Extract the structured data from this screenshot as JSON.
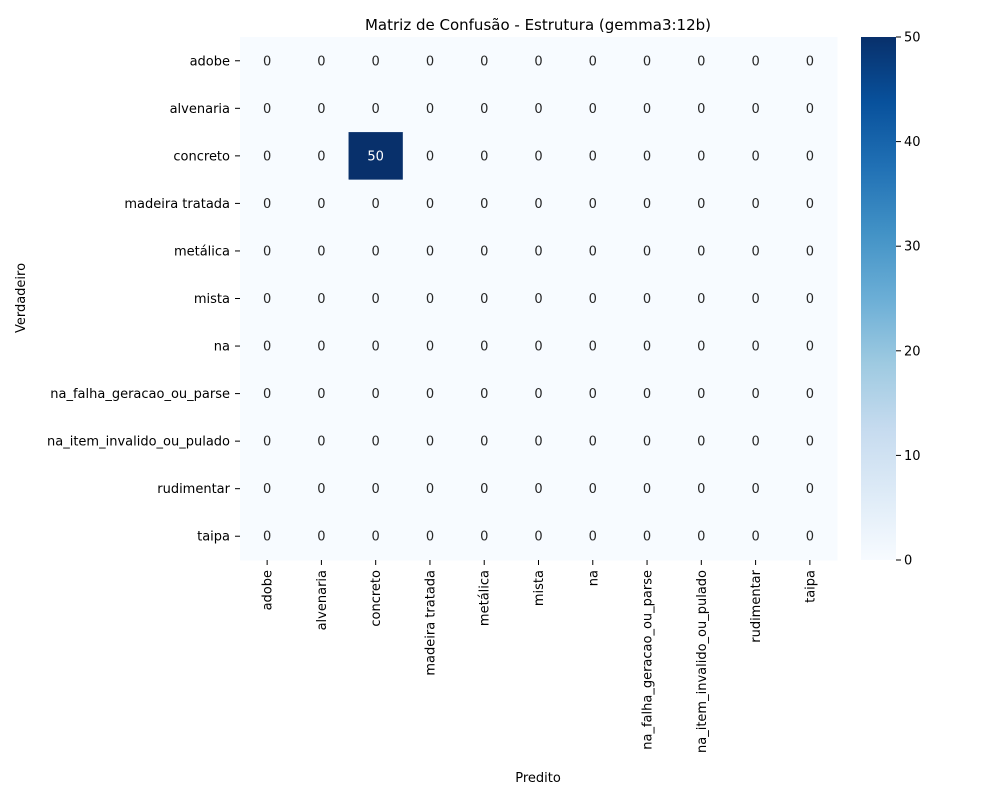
{
  "chart_data": {
    "type": "heatmap",
    "title": "Matriz de Confusão - Estrutura (gemma3:12b)",
    "xlabel": "Predito",
    "ylabel": "Verdadeiro",
    "x_categories": [
      "adobe",
      "alvenaria",
      "concreto",
      "madeira tratada",
      "metálica",
      "mista",
      "na",
      "na_falha_geracao_ou_parse",
      "na_item_invalido_ou_pulado",
      "rudimentar",
      "taipa"
    ],
    "y_categories": [
      "adobe",
      "alvenaria",
      "concreto",
      "madeira tratada",
      "metálica",
      "mista",
      "na",
      "na_falha_geracao_ou_parse",
      "na_item_invalido_ou_pulado",
      "rudimentar",
      "taipa"
    ],
    "values": [
      [
        0,
        0,
        0,
        0,
        0,
        0,
        0,
        0,
        0,
        0,
        0
      ],
      [
        0,
        0,
        0,
        0,
        0,
        0,
        0,
        0,
        0,
        0,
        0
      ],
      [
        0,
        0,
        50,
        0,
        0,
        0,
        0,
        0,
        0,
        0,
        0
      ],
      [
        0,
        0,
        0,
        0,
        0,
        0,
        0,
        0,
        0,
        0,
        0
      ],
      [
        0,
        0,
        0,
        0,
        0,
        0,
        0,
        0,
        0,
        0,
        0
      ],
      [
        0,
        0,
        0,
        0,
        0,
        0,
        0,
        0,
        0,
        0,
        0
      ],
      [
        0,
        0,
        0,
        0,
        0,
        0,
        0,
        0,
        0,
        0,
        0
      ],
      [
        0,
        0,
        0,
        0,
        0,
        0,
        0,
        0,
        0,
        0,
        0
      ],
      [
        0,
        0,
        0,
        0,
        0,
        0,
        0,
        0,
        0,
        0,
        0
      ],
      [
        0,
        0,
        0,
        0,
        0,
        0,
        0,
        0,
        0,
        0,
        0
      ],
      [
        0,
        0,
        0,
        0,
        0,
        0,
        0,
        0,
        0,
        0,
        0
      ]
    ],
    "colorbar": {
      "min": 0,
      "max": 50,
      "ticks": [
        0,
        10,
        20,
        30,
        40,
        50
      ],
      "colormap": "Blues",
      "low_color": "#f7fbff",
      "high_color": "#08306b"
    }
  }
}
